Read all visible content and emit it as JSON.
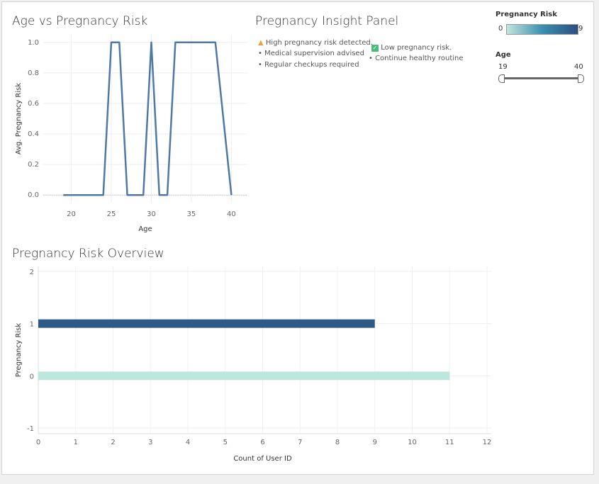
{
  "line_title": "Age vs Pregnancy Risk",
  "insight": {
    "title": "Pregnancy Insight Panel",
    "high": {
      "icon": "warning-icon",
      "headline": "High pregnancy risk detected.",
      "bullets": [
        "• Medical supervision advised",
        "• Regular checkups required"
      ]
    },
    "low": {
      "icon": "check-icon",
      "headline": "Low pregnancy risk.",
      "bullets": [
        "• Continue healthy routine"
      ]
    }
  },
  "legend": {
    "title": "Pregnancy Risk",
    "min": "0",
    "max": "9",
    "colors": [
      "#c0e6dc",
      "#3a8fb0",
      "#2b4f7e"
    ]
  },
  "age_filter": {
    "title": "Age",
    "min": "19",
    "max": "40"
  },
  "bar_title": "Pregnancy Risk Overview",
  "chart_data": [
    {
      "type": "line",
      "title": "Age vs Pregnancy Risk",
      "xlabel": "Age",
      "ylabel": "Avg. Pregnancy Risk",
      "xlim": [
        16.5,
        42
      ],
      "ylim": [
        -0.05,
        1.05
      ],
      "xticks": [
        20,
        25,
        30,
        35,
        40
      ],
      "yticks": [
        "0.0",
        "0.2",
        "0.4",
        "0.6",
        "0.8",
        "1.0"
      ],
      "x": [
        19,
        20,
        21,
        22,
        23,
        24,
        25,
        26,
        27,
        28,
        29,
        30,
        31,
        32,
        33,
        34,
        35,
        36,
        37,
        38,
        39,
        40
      ],
      "y": [
        0,
        0,
        0,
        0,
        0,
        0,
        1,
        1,
        0,
        0,
        0,
        1,
        0,
        0,
        1,
        1,
        1,
        1,
        1,
        1,
        0.5,
        0
      ],
      "color": "#4e79a7",
      "grid": true
    },
    {
      "type": "bar",
      "orientation": "horizontal",
      "title": "Pregnancy Risk Overview",
      "xlabel": "Count of User ID",
      "ylabel": "Pregnancy Risk",
      "categories": [
        1,
        0
      ],
      "values": [
        9,
        11
      ],
      "colors": [
        "#2e5a87",
        "#bde6dc"
      ],
      "xlim": [
        0,
        12
      ],
      "ylim": [
        -1,
        2
      ],
      "xticks": [
        "0",
        "1",
        "2",
        "3",
        "4",
        "5",
        "6",
        "7",
        "8",
        "9",
        "10",
        "11",
        "12"
      ],
      "yticks": [
        "-1",
        "0",
        "1",
        "2"
      ],
      "grid": true
    }
  ]
}
